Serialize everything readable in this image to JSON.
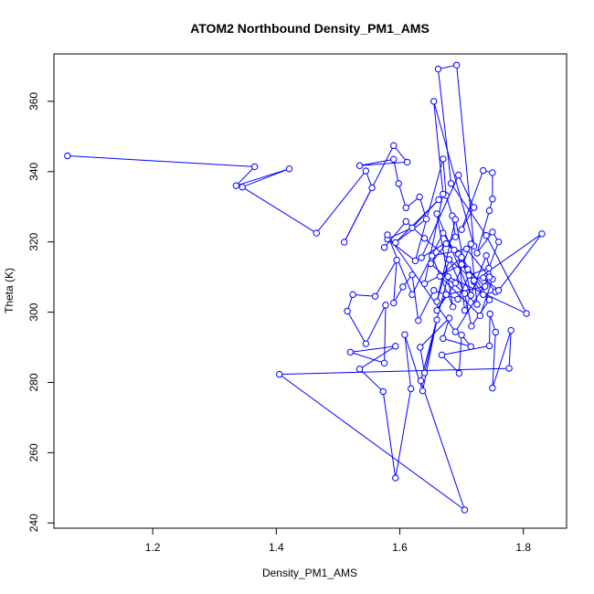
{
  "chart_data": {
    "type": "line",
    "title": "ATOM2 Northbound Density_PM1_AMS",
    "xlabel": "Density_PM1_AMS",
    "ylabel": "Theta (K)",
    "xlim": [
      1.04,
      1.87
    ],
    "ylim": [
      238.5,
      373.5
    ],
    "xticks": [
      1.2,
      1.4,
      1.6,
      1.8
    ],
    "xtick_labels": [
      "1.2",
      "1.4",
      "1.6",
      "1.8"
    ],
    "yticks": [
      240,
      260,
      280,
      300,
      320,
      340,
      360
    ],
    "ytick_labels": [
      "240",
      "260",
      "280",
      "300",
      "320",
      "340",
      "360"
    ],
    "grid": false,
    "legend": "none",
    "markers": "open-circle",
    "line_style": "lines-and-points",
    "colors": {
      "series": "#0000ff",
      "axis": "#000000",
      "background": "#ffffff"
    },
    "series": [
      {
        "points": [
          [
            1.062,
            344.5
          ],
          [
            1.365,
            341.4
          ],
          [
            1.335,
            336.0
          ],
          [
            1.421,
            340.8
          ],
          [
            1.345,
            335.6
          ],
          [
            1.465,
            322.5
          ],
          [
            1.545,
            340.2
          ],
          [
            1.555,
            335.4
          ],
          [
            1.51,
            319.9
          ],
          [
            1.59,
            347.4
          ],
          [
            1.612,
            342.7
          ],
          [
            1.535,
            341.7
          ],
          [
            1.59,
            343.5
          ],
          [
            1.598,
            336.6
          ],
          [
            1.61,
            329.7
          ],
          [
            1.632,
            332.8
          ],
          [
            1.643,
            326.5
          ],
          [
            1.593,
            319.8
          ],
          [
            1.663,
            332.0
          ],
          [
            1.62,
            324.0
          ],
          [
            1.58,
            320.8
          ],
          [
            1.625,
            314.6
          ],
          [
            1.67,
            343.6
          ],
          [
            1.675,
            333.2
          ],
          [
            1.685,
            327.4
          ],
          [
            1.69,
            321.4
          ],
          [
            1.635,
            315.5
          ],
          [
            1.695,
            339.0
          ],
          [
            1.72,
            329.8
          ],
          [
            1.7,
            323.5
          ],
          [
            1.735,
            340.3
          ],
          [
            1.75,
            339.7
          ],
          [
            1.75,
            332.2
          ],
          [
            1.745,
            328.9
          ],
          [
            1.725,
            316.8
          ],
          [
            1.75,
            322.8
          ],
          [
            1.76,
            320.0
          ],
          [
            1.744,
            312.5
          ],
          [
            1.712,
            310.5
          ],
          [
            1.694,
            303.7
          ],
          [
            1.655,
            306.2
          ],
          [
            1.63,
            297.6
          ],
          [
            1.62,
            310.6
          ],
          [
            1.605,
            307.2
          ],
          [
            1.59,
            302.6
          ],
          [
            1.595,
            314.8
          ],
          [
            1.56,
            304.5
          ],
          [
            1.524,
            305.0
          ],
          [
            1.515,
            300.3
          ],
          [
            1.545,
            291.0
          ],
          [
            1.577,
            302.0
          ],
          [
            1.575,
            285.5
          ],
          [
            1.52,
            288.6
          ],
          [
            1.593,
            290.3
          ],
          [
            1.535,
            283.8
          ],
          [
            1.573,
            277.4
          ],
          [
            1.593,
            252.8
          ],
          [
            1.618,
            278.2
          ],
          [
            1.608,
            293.6
          ],
          [
            1.637,
            277.6
          ],
          [
            1.66,
            297.8
          ],
          [
            1.64,
            282.7
          ],
          [
            1.633,
            290.0
          ],
          [
            1.68,
            298.3
          ],
          [
            1.67,
            292.5
          ],
          [
            1.715,
            290.2
          ],
          [
            1.7,
            293.5
          ],
          [
            1.696,
            282.6
          ],
          [
            1.668,
            287.8
          ],
          [
            1.745,
            290.4
          ],
          [
            1.746,
            299.5
          ],
          [
            1.755,
            294.3
          ],
          [
            1.75,
            278.4
          ],
          [
            1.78,
            294.8
          ],
          [
            1.777,
            284.0
          ],
          [
            1.405,
            282.3
          ],
          [
            1.705,
            243.7
          ],
          [
            1.634,
            280.5
          ],
          [
            1.678,
            310.1
          ],
          [
            1.805,
            299.6
          ],
          [
            1.74,
            321.8
          ],
          [
            1.683,
            336.6
          ],
          [
            1.662,
            369.2
          ],
          [
            1.692,
            370.3
          ],
          [
            1.72,
            318.8
          ],
          [
            1.655,
            360.0
          ],
          [
            1.67,
            333.6
          ],
          [
            1.64,
            308.1
          ],
          [
            1.7,
            313.6
          ],
          [
            1.735,
            305.0
          ],
          [
            1.755,
            305.8
          ],
          [
            1.735,
            309.8
          ],
          [
            1.76,
            306.2
          ],
          [
            1.83,
            322.3
          ],
          [
            1.72,
            308.7
          ],
          [
            1.688,
            317.7
          ],
          [
            1.71,
            312.2
          ],
          [
            1.738,
            307.3
          ],
          [
            1.675,
            305.0
          ],
          [
            1.66,
            300.5
          ],
          [
            1.69,
            308.3
          ],
          [
            1.715,
            319.4
          ],
          [
            1.725,
            302.2
          ],
          [
            1.65,
            313.8
          ],
          [
            1.675,
            319.5
          ],
          [
            1.695,
            316.5
          ],
          [
            1.705,
            300.5
          ],
          [
            1.74,
            316.1
          ],
          [
            1.75,
            309.4
          ],
          [
            1.73,
            299.0
          ],
          [
            1.665,
            310.2
          ],
          [
            1.7,
            315.6
          ],
          [
            1.745,
            303.5
          ],
          [
            1.716,
            296.0
          ],
          [
            1.705,
            305.3
          ],
          [
            1.68,
            315.0
          ],
          [
            1.66,
            303.0
          ],
          [
            1.69,
            326.4
          ],
          [
            1.715,
            304.8
          ],
          [
            1.66,
            328.0
          ],
          [
            1.686,
            301.5
          ],
          [
            1.652,
            316.0
          ],
          [
            1.708,
            318.0
          ],
          [
            1.745,
            310.0
          ],
          [
            1.69,
            294.4
          ],
          [
            1.58,
            322.0
          ],
          [
            1.62,
            305.0
          ],
          [
            1.67,
            322.5
          ],
          [
            1.72,
            309.0
          ],
          [
            1.64,
            321.0
          ],
          [
            1.61,
            325.8
          ],
          [
            1.575,
            318.4
          ]
        ]
      }
    ]
  }
}
